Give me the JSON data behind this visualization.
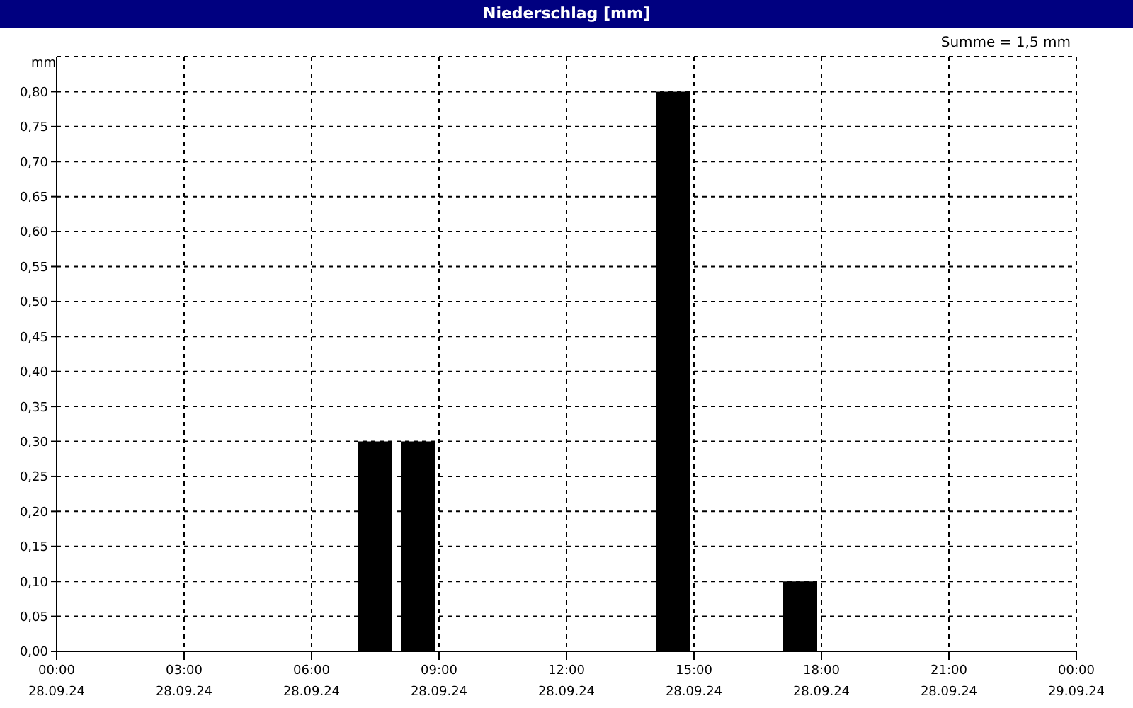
{
  "chart_data": {
    "type": "bar",
    "title": "Niederschlag [mm]",
    "ylabel": "mm",
    "annotations": [
      "Summe = 1,5 mm"
    ],
    "x": [
      "--09-28T07:30",
      "--09-28T08:30",
      "--09-28T14:30",
      "--09-28T17:30"
    ],
    "values": [
      0.3,
      0.3,
      0.8,
      0.1
    ],
    "color": "#000000",
    "xlim": [
      "--09-28T00:00",
      "--09-29T00:00"
    ],
    "xticks": [
      {
        "value": "--09-28T00:00",
        "label": "00:00\n28.09.24"
      },
      {
        "value": "--09-28T03:00",
        "label": "03:00\n28.09.24"
      },
      {
        "value": "--09-28T06:00",
        "label": "06:00\n28.09.24"
      },
      {
        "value": "--09-28T09:00",
        "label": "09:00\n28.09.24"
      },
      {
        "value": "--09-28T12:00",
        "label": "12:00\n28.09.24"
      },
      {
        "value": "--09-28T15:00",
        "label": "15:00\n28.09.24"
      },
      {
        "value": "--09-28T18:00",
        "label": "18:00\n28.09.24"
      },
      {
        "value": "--09-28T21:00",
        "label": "21:00\n28.09.24"
      },
      {
        "value": "--09-29T00:00",
        "label": "00:00\n29.09.24"
      }
    ],
    "ylim": [
      0,
      0.85
    ],
    "yticks": [
      {
        "value": 0,
        "label": "0,00"
      },
      {
        "value": 0.05,
        "label": "0,05"
      },
      {
        "value": 0.1,
        "label": "0,10"
      },
      {
        "value": 0.15,
        "label": "0,15"
      },
      {
        "value": 0.2,
        "label": "0,20"
      },
      {
        "value": 0.25,
        "label": "0,25"
      },
      {
        "value": 0.3,
        "label": "0,30"
      },
      {
        "value": 0.35,
        "label": "0,35"
      },
      {
        "value": 0.4,
        "label": "0,40"
      },
      {
        "value": 0.45,
        "label": "0,45"
      },
      {
        "value": 0.5,
        "label": "0,50"
      },
      {
        "value": 0.55,
        "label": "0,55"
      },
      {
        "value": 0.6,
        "label": "0,60"
      },
      {
        "value": 0.65,
        "label": "0,65"
      },
      {
        "value": 0.7,
        "label": "0,70"
      },
      {
        "value": 0.75,
        "label": "0,75"
      },
      {
        "value": 0.8,
        "label": "0,80"
      }
    ],
    "grid": true
  }
}
